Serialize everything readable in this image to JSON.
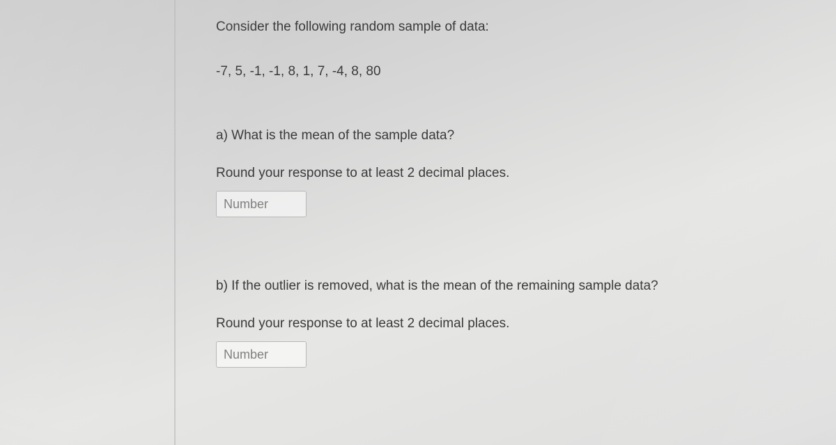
{
  "question": {
    "intro": "Consider the following random sample of data:",
    "data_values": "-7, 5, -1, -1, 8, 1, 7, -4, 8, 80",
    "parts": {
      "a": {
        "prompt": "a)  What is the mean of the sample data?",
        "instruction": "Round your response to at least 2 decimal places.",
        "placeholder": "Number"
      },
      "b": {
        "prompt": "b)  If the outlier is removed, what is the mean of the remaining sample data?",
        "instruction": "Round your response to at least 2 decimal places.",
        "placeholder": "Number"
      }
    }
  },
  "style": {
    "text_color": "#3a3a3a",
    "input_border": "#b8b8b8",
    "placeholder_color": "#808080",
    "font_size_pt": 14
  }
}
